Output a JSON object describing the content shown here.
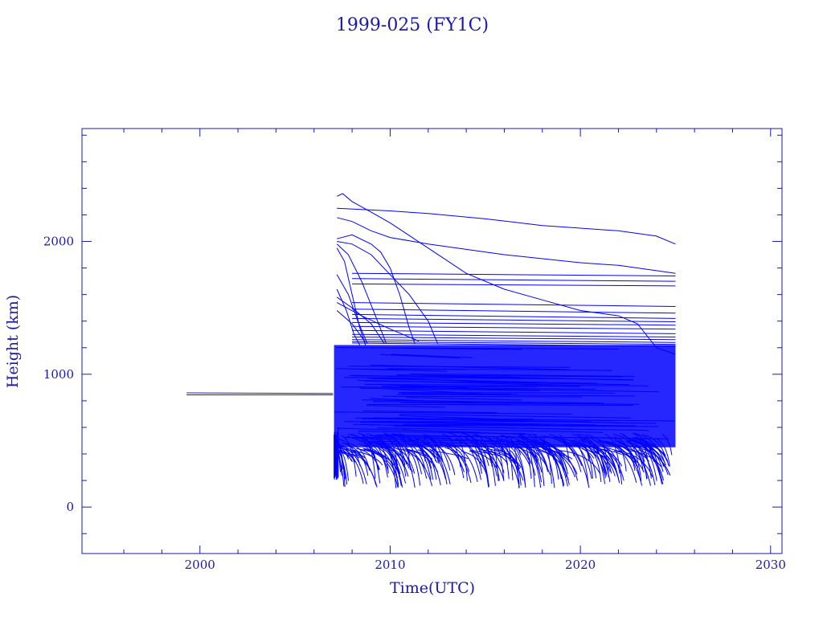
{
  "chart_data": {
    "type": "line",
    "title": "1999-025 (FY1C)",
    "xlabel": "Time(UTC)",
    "ylabel": "Height (km)",
    "xlim": [
      1993.8,
      2030.6
    ],
    "ylim": [
      -350,
      2850
    ],
    "x_ticks": [
      2000,
      2010,
      2020,
      2030
    ],
    "y_ticks": [
      0,
      1000,
      2000
    ],
    "grid": false,
    "line_color": "#0000ff",
    "axis_color": "#1a1aa6",
    "series": [
      {
        "values": [
          [
            1999.3,
            860
          ],
          [
            2007.0,
            855
          ]
        ]
      },
      {
        "values": [
          [
            1999.3,
            845
          ],
          [
            2007.0,
            845
          ]
        ]
      },
      {
        "values": [
          [
            2007.2,
            2340
          ],
          [
            2007.5,
            2360
          ],
          [
            2008.0,
            2300
          ],
          [
            2009.0,
            2220
          ],
          [
            2010.0,
            2140
          ],
          [
            2012.0,
            1950
          ],
          [
            2014.0,
            1760
          ],
          [
            2016.0,
            1640
          ],
          [
            2018.0,
            1560
          ],
          [
            2020.0,
            1480
          ],
          [
            2022.0,
            1440
          ],
          [
            2023.0,
            1380
          ],
          [
            2024.0,
            1200
          ],
          [
            2025.0,
            1150
          ]
        ]
      },
      {
        "values": [
          [
            2007.2,
            2250
          ],
          [
            2010.0,
            2230
          ],
          [
            2012.0,
            2210
          ],
          [
            2015.0,
            2170
          ],
          [
            2018.0,
            2120
          ],
          [
            2020.0,
            2100
          ],
          [
            2022.0,
            2080
          ],
          [
            2024.0,
            2040
          ],
          [
            2025.0,
            1980
          ]
        ]
      },
      {
        "values": [
          [
            2007.2,
            2180
          ],
          [
            2008.0,
            2150
          ],
          [
            2009.0,
            2080
          ],
          [
            2010.0,
            2030
          ],
          [
            2012.0,
            1980
          ],
          [
            2014.0,
            1940
          ],
          [
            2016.0,
            1900
          ],
          [
            2018.0,
            1870
          ],
          [
            2020.0,
            1840
          ],
          [
            2022.0,
            1820
          ],
          [
            2024.0,
            1780
          ],
          [
            2025.0,
            1760
          ]
        ]
      },
      {
        "values": [
          [
            2007.2,
            2020
          ],
          [
            2008.0,
            2050
          ],
          [
            2009.0,
            1980
          ],
          [
            2009.5,
            1920
          ],
          [
            2010.0,
            1800
          ],
          [
            2010.5,
            1600
          ],
          [
            2011.0,
            1350
          ],
          [
            2011.3,
            1230
          ]
        ]
      },
      {
        "values": [
          [
            2007.2,
            2000
          ],
          [
            2008.0,
            1980
          ],
          [
            2009.0,
            1900
          ],
          [
            2010.0,
            1750
          ],
          [
            2011.0,
            1600
          ],
          [
            2012.0,
            1400
          ],
          [
            2012.5,
            1230
          ]
        ]
      },
      {
        "values": [
          [
            2007.2,
            1950
          ],
          [
            2007.6,
            1850
          ],
          [
            2008.0,
            1600
          ],
          [
            2008.4,
            1350
          ],
          [
            2008.7,
            1220
          ]
        ]
      },
      {
        "values": [
          [
            2007.2,
            1980
          ],
          [
            2007.8,
            1900
          ],
          [
            2008.5,
            1700
          ],
          [
            2009.2,
            1450
          ],
          [
            2009.8,
            1230
          ]
        ]
      },
      {
        "values": [
          [
            2007.2,
            1580
          ],
          [
            2008.0,
            1500
          ],
          [
            2009.0,
            1380
          ],
          [
            2009.7,
            1230
          ]
        ]
      },
      {
        "values": [
          [
            2007.2,
            1540
          ],
          [
            2008.5,
            1440
          ],
          [
            2010.0,
            1340
          ],
          [
            2011.5,
            1250
          ]
        ]
      },
      {
        "values": [
          [
            2007.2,
            1480
          ],
          [
            2008.0,
            1380
          ],
          [
            2008.7,
            1240
          ]
        ]
      },
      {
        "values": [
          [
            2007.2,
            1750
          ],
          [
            2007.8,
            1600
          ],
          [
            2008.3,
            1400
          ],
          [
            2008.8,
            1230
          ]
        ]
      },
      {
        "values": [
          [
            2007.2,
            1640
          ],
          [
            2007.7,
            1480
          ],
          [
            2008.1,
            1300
          ],
          [
            2008.4,
            1220
          ]
        ]
      },
      {
        "values": [
          [
            2008.0,
            1760
          ],
          [
            2025.0,
            1740
          ]
        ]
      },
      {
        "values": [
          [
            2008.0,
            1720
          ],
          [
            2025.0,
            1700
          ]
        ]
      },
      {
        "values": [
          [
            2008.0,
            1680
          ],
          [
            2025.0,
            1665
          ]
        ]
      },
      {
        "values": [
          [
            2008.0,
            1540
          ],
          [
            2025.0,
            1510
          ]
        ]
      },
      {
        "values": [
          [
            2008.0,
            1490
          ],
          [
            2025.0,
            1460
          ]
        ]
      },
      {
        "values": [
          [
            2008.0,
            1450
          ],
          [
            2025.0,
            1420
          ]
        ]
      },
      {
        "values": [
          [
            2008.0,
            1420
          ],
          [
            2025.0,
            1395
          ]
        ]
      },
      {
        "values": [
          [
            2008.0,
            1390
          ],
          [
            2025.0,
            1370
          ]
        ]
      },
      {
        "values": [
          [
            2008.0,
            1360
          ],
          [
            2025.0,
            1340
          ]
        ]
      },
      {
        "values": [
          [
            2008.0,
            1330
          ],
          [
            2025.0,
            1305
          ]
        ]
      },
      {
        "values": [
          [
            2008.0,
            1300
          ],
          [
            2025.0,
            1280
          ]
        ]
      },
      {
        "values": [
          [
            2008.0,
            1280
          ],
          [
            2025.0,
            1260
          ]
        ]
      },
      {
        "values": [
          [
            2008.0,
            1260
          ],
          [
            2025.0,
            1240
          ]
        ]
      },
      {
        "values": [
          [
            2008.0,
            1245
          ],
          [
            2025.0,
            1225
          ]
        ]
      },
      {
        "values": [
          [
            2008.0,
            1235
          ],
          [
            2025.0,
            1210
          ]
        ]
      }
    ],
    "dense_band": {
      "x_start": 2007.05,
      "x_end": 2025.0,
      "y_low": 450,
      "y_high": 1220
    },
    "decay_tails": {
      "x_start": 2007.05,
      "x_end": 2025.0,
      "y_top": 560,
      "y_min": 140
    }
  }
}
